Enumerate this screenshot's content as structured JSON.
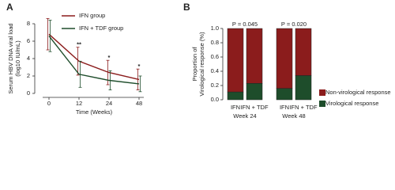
{
  "chart_data": [
    {
      "type": "line",
      "panel": "A",
      "y_label": [
        "Serum HBV DNA viral load",
        "(log10 IU/mL)"
      ],
      "x_label": "Time (Weeks)",
      "categories": [
        "0",
        "12",
        "24",
        "48"
      ],
      "series": [
        {
          "name": "IFN group",
          "color": "#8b1c1c",
          "values": [
            6.8,
            3.7,
            2.4,
            1.6
          ],
          "errors": [
            1.8,
            1.6,
            1.4,
            1.2
          ]
        },
        {
          "name": "IFN + TDF group",
          "color": "#1e4d2b",
          "values": [
            6.6,
            2.2,
            1.5,
            1.1
          ],
          "errors": [
            1.8,
            1.5,
            1.1,
            0.9
          ]
        }
      ],
      "annotations": [
        "**",
        "*",
        "*"
      ],
      "ylim": [
        0,
        8
      ],
      "yticks": [
        0,
        2,
        4,
        6,
        8
      ]
    },
    {
      "type": "bar",
      "stacked": true,
      "panel": "B",
      "y_label": [
        "Proportion of",
        "Virological response (%)"
      ],
      "categories": [
        "IFN",
        "IFN + TDF",
        "IFN",
        "IFN + TDF"
      ],
      "group_labels": [
        "Week 24",
        "Week 48"
      ],
      "annotations": [
        "P = 0.045",
        "P = 0.020"
      ],
      "series": [
        {
          "name": "Virological response",
          "color": "#1e4d2b",
          "values": [
            0.11,
            0.23,
            0.16,
            0.34
          ]
        },
        {
          "name": "Non-virological response",
          "color": "#8b1c1c",
          "values": [
            0.89,
            0.77,
            0.84,
            0.66
          ]
        }
      ],
      "ylim": [
        0,
        1
      ],
      "yticks": [
        {
          "value": 0,
          "label": "0.0"
        },
        {
          "value": 0.2,
          "label": "0.2"
        },
        {
          "value": 0.4,
          "label": "0.4"
        },
        {
          "value": 0.6,
          "label": "0.6"
        },
        {
          "value": 0.8,
          "label": "0.8"
        },
        {
          "value": 1,
          "label": "1.0"
        }
      ]
    }
  ]
}
